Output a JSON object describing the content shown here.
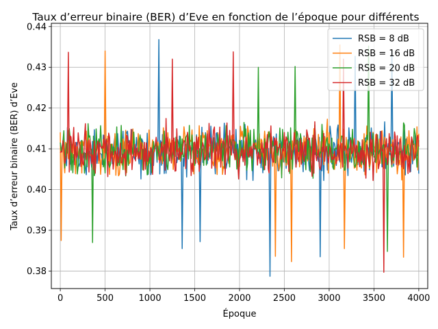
{
  "chart_data": {
    "type": "line",
    "title": "Taux d’erreur binaire (BER) d’Eve en fonction de l’époque pour différents",
    "xlabel": "Époque",
    "ylabel": "Taux d’erreur binaire (BER) d’Eve",
    "xlim": [
      -100,
      4100
    ],
    "ylim": [
      0.3757,
      0.4408
    ],
    "xticks": [
      0,
      500,
      1000,
      1500,
      2000,
      2500,
      3000,
      3500,
      4000
    ],
    "xtick_labels": [
      "0",
      "500",
      "1000",
      "1500",
      "2000",
      "2500",
      "3000",
      "3500",
      "4000"
    ],
    "yticks": [
      0.38,
      0.39,
      0.4,
      0.41,
      0.42,
      0.43,
      0.44
    ],
    "ytick_labels": [
      "0.38",
      "0.39",
      "0.40",
      "0.41",
      "0.42",
      "0.43",
      "0.44"
    ],
    "grid": true,
    "legend_position": "top-right",
    "x_range": [
      0,
      4000
    ],
    "x_step": 10,
    "series": [
      {
        "name": "RSB = 8 dB",
        "color": "#1f77b4",
        "center": 0.4095,
        "spread": 0.0085,
        "extremes": [
          [
            1100,
            0.4368
          ],
          [
            1560,
            0.4343
          ],
          [
            2340,
            0.3787
          ],
          [
            2900,
            0.3835
          ],
          [
            3290,
            0.4327
          ],
          [
            3700,
            0.434
          ],
          [
            1360,
            0.3855
          ],
          [
            1560,
            0.3872
          ]
        ]
      },
      {
        "name": "RSB = 16 dB",
        "color": "#ff7f0e",
        "center": 0.4095,
        "spread": 0.0085,
        "extremes": [
          [
            10,
            0.3875
          ],
          [
            500,
            0.434
          ],
          [
            2580,
            0.3823
          ],
          [
            3120,
            0.4355
          ],
          [
            2400,
            0.3836
          ],
          [
            3170,
            0.3855
          ],
          [
            3830,
            0.3834
          ]
        ]
      },
      {
        "name": "RSB = 20 dB",
        "color": "#2ca02c",
        "center": 0.4095,
        "spread": 0.0085,
        "extremes": [
          [
            360,
            0.387
          ],
          [
            2620,
            0.4302
          ],
          [
            3440,
            0.4352
          ],
          [
            3650,
            0.3848
          ],
          [
            2210,
            0.43
          ]
        ]
      },
      {
        "name": "RSB = 32 dB",
        "color": "#d62728",
        "center": 0.4095,
        "spread": 0.0085,
        "extremes": [
          [
            90,
            0.4337
          ],
          [
            1930,
            0.4338
          ],
          [
            3610,
            0.3797
          ],
          [
            1250,
            0.432
          ],
          [
            3160,
            0.432
          ]
        ]
      }
    ]
  }
}
